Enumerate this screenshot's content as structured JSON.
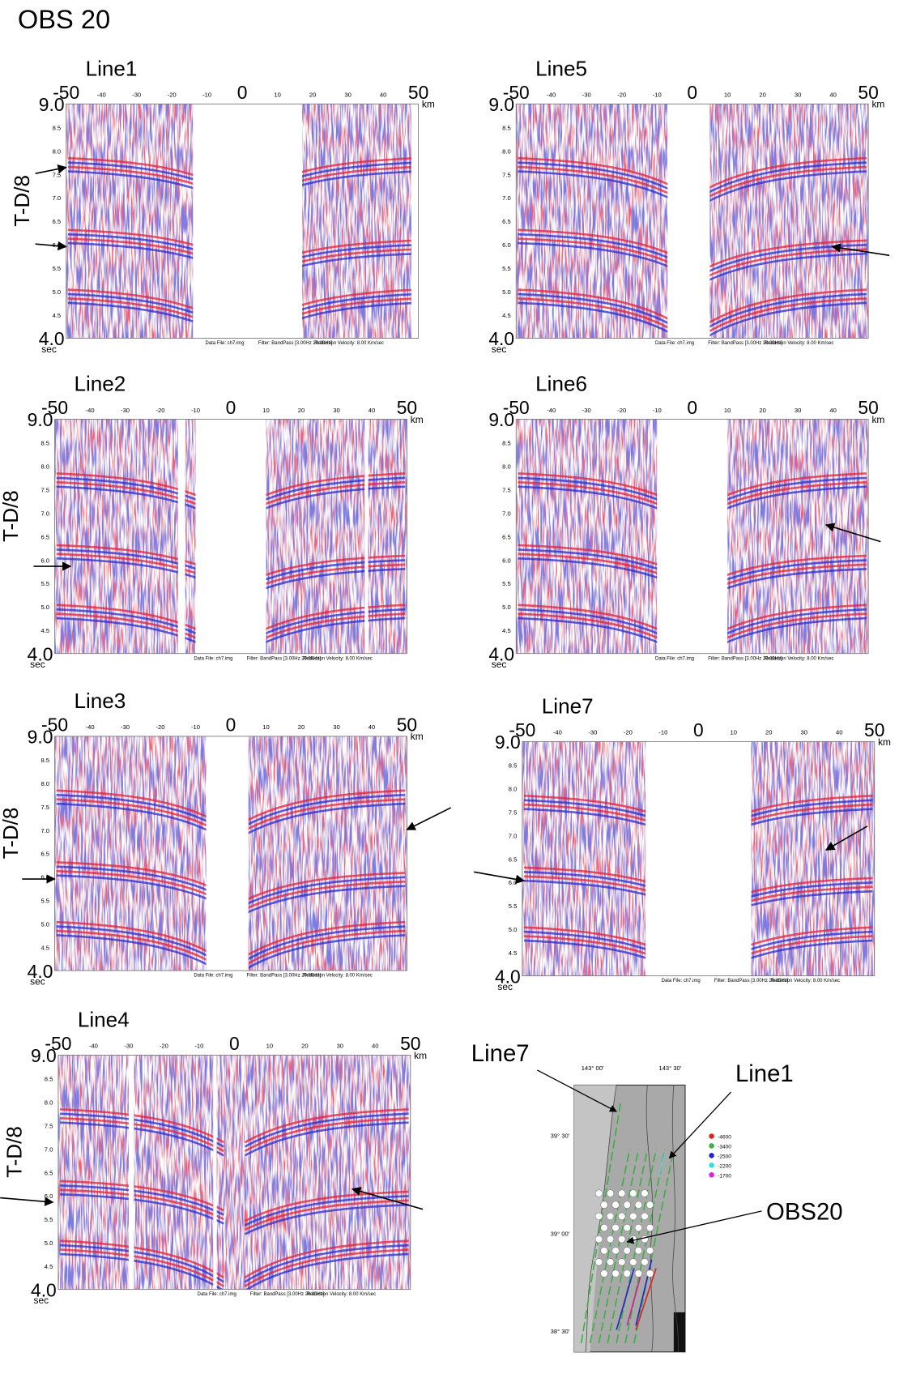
{
  "title": "OBS 20",
  "axes": {
    "x_major": [
      "-50",
      "0",
      "50"
    ],
    "x_minor": [
      "-40",
      "-30",
      "-20",
      "-10",
      "10",
      "20",
      "30",
      "40"
    ],
    "x_unit": "km",
    "y_major": [
      "9.0",
      "4.0"
    ],
    "y_minor": [
      "8.5",
      "8.0",
      "7.5",
      "7.0",
      "6.5",
      "6.0",
      "5.5",
      "5.0",
      "4.5"
    ],
    "y_title": "T-D/8",
    "y_unit": "sec"
  },
  "footer": [
    "Data File: ch7.img",
    "Filter: BandPass [3.00Hz 20.00Hz]",
    "Reduction Velocity: 8.00 Km/sec"
  ],
  "panels": [
    {
      "label": "Line1"
    },
    {
      "label": "Line5"
    },
    {
      "label": "Line2"
    },
    {
      "label": "Line6"
    },
    {
      "label": "Line3"
    },
    {
      "label": "Line7"
    },
    {
      "label": "Line4"
    }
  ],
  "map": {
    "lon_labels": [
      "143° 00'",
      "143° 30'"
    ],
    "lat_labels": [
      "39° 30'",
      "39° 00'",
      "38° 30'"
    ],
    "legend": [
      "-4600",
      "-3400",
      "-2500",
      "-2200",
      "-1700"
    ],
    "callouts": [
      "Line7",
      "Line1",
      "OBS20"
    ]
  }
}
